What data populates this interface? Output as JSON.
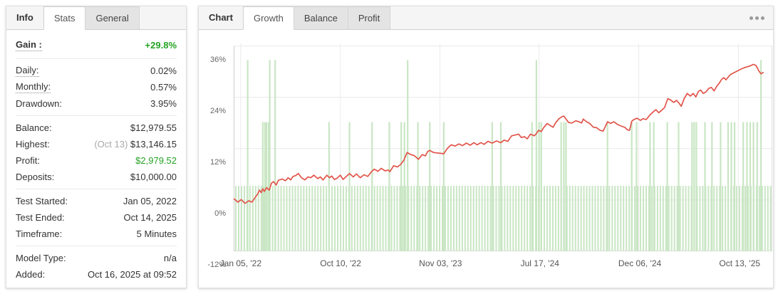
{
  "left_panel": {
    "tabs": [
      {
        "label": "Info",
        "state": "plain"
      },
      {
        "label": "Stats",
        "state": "active"
      },
      {
        "label": "General",
        "state": "inactive"
      }
    ],
    "groups": [
      {
        "rows": [
          {
            "label": "Gain :",
            "value": "+29.8%",
            "label_style": "bold dotted",
            "value_style": "gain",
            "tall": true
          }
        ]
      },
      {
        "rows": [
          {
            "label": "Daily:",
            "value": "0.02%",
            "label_style": "dotted"
          },
          {
            "label": "Monthly:",
            "value": "0.57%",
            "label_style": "dotted"
          },
          {
            "label": "Drawdown:",
            "value": "3.95%"
          }
        ]
      },
      {
        "rows": [
          {
            "label": "Balance:",
            "value": "$12,979.55"
          },
          {
            "label": "Highest:",
            "prefix": "(Oct 13) ",
            "value": "$13,146.15"
          },
          {
            "label": "Profit:",
            "value": "$2,979.52",
            "value_style": "profit"
          },
          {
            "label": "Deposits:",
            "value": "$10,000.00"
          }
        ]
      },
      {
        "rows": [
          {
            "label": "Test Started:",
            "value": "Jan 05, 2022"
          },
          {
            "label": "Test Ended:",
            "value": "Oct 14, 2025"
          },
          {
            "label": "Timeframe:",
            "value": "5 Minutes"
          }
        ]
      },
      {
        "rows": [
          {
            "label": "Model Type:",
            "value": "n/a"
          },
          {
            "label": "Added:",
            "value": "Oct 16, 2025 at 09:52"
          }
        ]
      }
    ]
  },
  "chart_panel": {
    "tabs": [
      {
        "label": "Chart",
        "state": "plain"
      },
      {
        "label": "Growth",
        "state": "active"
      },
      {
        "label": "Balance",
        "state": "inactive"
      },
      {
        "label": "Profit",
        "state": "inactive"
      }
    ],
    "menu_icon": "ellipsis-icon"
  },
  "chart_data": {
    "type": "line",
    "title": "Growth",
    "xlabel": "",
    "ylabel": "",
    "y_unit": "%",
    "ylim": [
      -12,
      36.6
    ],
    "grid": true,
    "legend": false,
    "colors": {
      "line": "#e2544a",
      "bars": "#c9e6c4",
      "grid": "#e9e9e9",
      "axis": "#bbbbbb",
      "tick_text": "#666666"
    },
    "y_ticks": [
      {
        "v": 36,
        "label": "36%"
      },
      {
        "v": 24,
        "label": "24%"
      },
      {
        "v": 12,
        "label": "12%"
      },
      {
        "v": 0,
        "label": "0%"
      },
      {
        "v": -12,
        "label": "-12%"
      }
    ],
    "x_ticks": [
      {
        "f": 0.013,
        "label": "Jan 05, '22"
      },
      {
        "f": 0.198,
        "label": "Oct 10, '22"
      },
      {
        "f": 0.383,
        "label": "Nov 03, '23"
      },
      {
        "f": 0.567,
        "label": "Jul 17, '24"
      },
      {
        "f": 0.752,
        "label": "Dec 06, '24"
      },
      {
        "f": 0.937,
        "label": "Oct 13, '25"
      }
    ],
    "series": [
      {
        "name": "Growth %",
        "type": "line",
        "color": "#e2544a",
        "points": [
          [
            0.0,
            0.3
          ],
          [
            0.008,
            -0.5
          ],
          [
            0.014,
            0.1
          ],
          [
            0.021,
            -0.8
          ],
          [
            0.028,
            -0.2
          ],
          [
            0.034,
            -0.5
          ],
          [
            0.04,
            0.6
          ],
          [
            0.044,
            1.3
          ],
          [
            0.048,
            2.3
          ],
          [
            0.051,
            1.7
          ],
          [
            0.054,
            2.6
          ],
          [
            0.057,
            2.0
          ],
          [
            0.061,
            2.9
          ],
          [
            0.066,
            2.3
          ],
          [
            0.07,
            3.9
          ],
          [
            0.074,
            4.3
          ],
          [
            0.079,
            3.5
          ],
          [
            0.083,
            4.6
          ],
          [
            0.09,
            4.9
          ],
          [
            0.096,
            4.5
          ],
          [
            0.101,
            5.2
          ],
          [
            0.106,
            4.7
          ],
          [
            0.11,
            5.5
          ],
          [
            0.115,
            5.7
          ],
          [
            0.12,
            6.2
          ],
          [
            0.126,
            5.2
          ],
          [
            0.132,
            4.7
          ],
          [
            0.138,
            5.4
          ],
          [
            0.143,
            5.2
          ],
          [
            0.149,
            5.8
          ],
          [
            0.156,
            5.0
          ],
          [
            0.161,
            5.4
          ],
          [
            0.166,
            4.7
          ],
          [
            0.173,
            5.8
          ],
          [
            0.178,
            5.2
          ],
          [
            0.182,
            5.6
          ],
          [
            0.187,
            4.8
          ],
          [
            0.192,
            5.1
          ],
          [
            0.198,
            5.8
          ],
          [
            0.203,
            4.8
          ],
          [
            0.209,
            5.5
          ],
          [
            0.215,
            6.2
          ],
          [
            0.222,
            5.4
          ],
          [
            0.228,
            6.1
          ],
          [
            0.235,
            5.2
          ],
          [
            0.242,
            5.9
          ],
          [
            0.249,
            5.5
          ],
          [
            0.256,
            6.6
          ],
          [
            0.261,
            7.2
          ],
          [
            0.268,
            6.7
          ],
          [
            0.274,
            7.4
          ],
          [
            0.281,
            6.8
          ],
          [
            0.287,
            7.0
          ],
          [
            0.29,
            6.6
          ],
          [
            0.297,
            8.0
          ],
          [
            0.304,
            7.7
          ],
          [
            0.31,
            8.3
          ],
          [
            0.316,
            9.3
          ],
          [
            0.322,
            11.1
          ],
          [
            0.329,
            10.6
          ],
          [
            0.335,
            10.4
          ],
          [
            0.343,
            9.5
          ],
          [
            0.35,
            10.6
          ],
          [
            0.356,
            10.3
          ],
          [
            0.36,
            11.3
          ],
          [
            0.364,
            11.6
          ],
          [
            0.371,
            11.1
          ],
          [
            0.377,
            11.0
          ],
          [
            0.384,
            10.9
          ],
          [
            0.39,
            10.8
          ],
          [
            0.397,
            12.1
          ],
          [
            0.404,
            12.9
          ],
          [
            0.411,
            12.6
          ],
          [
            0.418,
            13.1
          ],
          [
            0.425,
            12.7
          ],
          [
            0.432,
            13.3
          ],
          [
            0.439,
            12.8
          ],
          [
            0.446,
            13.4
          ],
          [
            0.452,
            12.9
          ],
          [
            0.459,
            13.4
          ],
          [
            0.465,
            13.0
          ],
          [
            0.472,
            13.7
          ],
          [
            0.48,
            13.3
          ],
          [
            0.488,
            13.8
          ],
          [
            0.496,
            13.4
          ],
          [
            0.502,
            14.0
          ],
          [
            0.509,
            13.7
          ],
          [
            0.516,
            15.0
          ],
          [
            0.523,
            15.2
          ],
          [
            0.529,
            15.4
          ],
          [
            0.534,
            14.6
          ],
          [
            0.54,
            14.8
          ],
          [
            0.545,
            14.3
          ],
          [
            0.551,
            15.4
          ],
          [
            0.558,
            15.0
          ],
          [
            0.562,
            15.5
          ],
          [
            0.566,
            16.3
          ],
          [
            0.571,
            16.0
          ],
          [
            0.576,
            17.0
          ],
          [
            0.582,
            17.9
          ],
          [
            0.588,
            17.4
          ],
          [
            0.593,
            17.0
          ],
          [
            0.598,
            18.1
          ],
          [
            0.604,
            19.0
          ],
          [
            0.61,
            19.5
          ],
          [
            0.613,
            19.6
          ],
          [
            0.617,
            18.9
          ],
          [
            0.622,
            18.1
          ],
          [
            0.628,
            18.0
          ],
          [
            0.635,
            18.5
          ],
          [
            0.641,
            18.3
          ],
          [
            0.646,
            18.0
          ],
          [
            0.649,
            18.9
          ],
          [
            0.655,
            18.3
          ],
          [
            0.661,
            17.9
          ],
          [
            0.668,
            17.0
          ],
          [
            0.674,
            16.9
          ],
          [
            0.68,
            16.3
          ],
          [
            0.686,
            16.1
          ],
          [
            0.694,
            18.3
          ],
          [
            0.7,
            17.9
          ],
          [
            0.706,
            18.3
          ],
          [
            0.712,
            17.7
          ],
          [
            0.719,
            17.3
          ],
          [
            0.726,
            17.0
          ],
          [
            0.731,
            16.4
          ],
          [
            0.735,
            16.3
          ],
          [
            0.739,
            18.4
          ],
          [
            0.743,
            18.8
          ],
          [
            0.749,
            19.1
          ],
          [
            0.755,
            18.6
          ],
          [
            0.76,
            19.0
          ],
          [
            0.766,
            18.8
          ],
          [
            0.773,
            19.9
          ],
          [
            0.779,
            20.6
          ],
          [
            0.784,
            21.1
          ],
          [
            0.789,
            20.4
          ],
          [
            0.794,
            20.9
          ],
          [
            0.8,
            21.6
          ],
          [
            0.806,
            23.7
          ],
          [
            0.811,
            23.4
          ],
          [
            0.817,
            22.8
          ],
          [
            0.822,
            23.3
          ],
          [
            0.827,
            22.6
          ],
          [
            0.831,
            21.9
          ],
          [
            0.836,
            23.6
          ],
          [
            0.842,
            24.9
          ],
          [
            0.848,
            24.3
          ],
          [
            0.853,
            24.9
          ],
          [
            0.858,
            24.1
          ],
          [
            0.863,
            25.4
          ],
          [
            0.867,
            25.7
          ],
          [
            0.872,
            24.9
          ],
          [
            0.877,
            25.3
          ],
          [
            0.882,
            26.1
          ],
          [
            0.887,
            26.3
          ],
          [
            0.892,
            25.5
          ],
          [
            0.897,
            26.6
          ],
          [
            0.902,
            27.4
          ],
          [
            0.906,
            28.2
          ],
          [
            0.91,
            28.6
          ],
          [
            0.914,
            28.1
          ],
          [
            0.918,
            28.7
          ],
          [
            0.922,
            29.3
          ],
          [
            0.928,
            29.7
          ],
          [
            0.934,
            30.1
          ],
          [
            0.942,
            30.6
          ],
          [
            0.95,
            31.0
          ],
          [
            0.958,
            31.3
          ],
          [
            0.965,
            31.7
          ],
          [
            0.97,
            31.4
          ],
          [
            0.975,
            30.2
          ],
          [
            0.979,
            29.5
          ],
          [
            0.983,
            29.8
          ]
        ]
      },
      {
        "name": "Activity bars",
        "type": "bar",
        "color": "#c9e6c4",
        "baseline": -12,
        "regular": {
          "count": 190,
          "start": 0.004,
          "end": 0.997,
          "height": 3.3
        },
        "special": [
          [
            0.026,
            32.7
          ],
          [
            0.054,
            18.2
          ],
          [
            0.058,
            18.2
          ],
          [
            0.061,
            18.2
          ],
          [
            0.065,
            18.2
          ],
          [
            0.067,
            32.7
          ],
          [
            0.077,
            32.7
          ],
          [
            0.177,
            18.2
          ],
          [
            0.215,
            18.2
          ],
          [
            0.257,
            18.2
          ],
          [
            0.289,
            18.2
          ],
          [
            0.311,
            18.2
          ],
          [
            0.317,
            18.2
          ],
          [
            0.323,
            32.7
          ],
          [
            0.342,
            18.2
          ],
          [
            0.364,
            18.2
          ],
          [
            0.39,
            18.2
          ],
          [
            0.48,
            18.2
          ],
          [
            0.496,
            18.2
          ],
          [
            0.554,
            18.2
          ],
          [
            0.562,
            32.7
          ],
          [
            0.567,
            18.2
          ],
          [
            0.571,
            18.2
          ],
          [
            0.608,
            18.2
          ],
          [
            0.613,
            18.2
          ],
          [
            0.617,
            18.2
          ],
          [
            0.694,
            18.2
          ],
          [
            0.739,
            18.2
          ],
          [
            0.748,
            18.2
          ],
          [
            0.773,
            18.2
          ],
          [
            0.78,
            18.2
          ],
          [
            0.805,
            18.2
          ],
          [
            0.826,
            18.2
          ],
          [
            0.851,
            18.2
          ],
          [
            0.855,
            18.2
          ],
          [
            0.859,
            18.2
          ],
          [
            0.875,
            18.2
          ],
          [
            0.888,
            18.2
          ],
          [
            0.904,
            18.2
          ],
          [
            0.918,
            18.2
          ],
          [
            0.924,
            18.2
          ],
          [
            0.93,
            18.2
          ],
          [
            0.946,
            18.2
          ],
          [
            0.953,
            18.2
          ],
          [
            0.959,
            18.2
          ],
          [
            0.965,
            18.2
          ],
          [
            0.972,
            18.2
          ],
          [
            0.979,
            32.7
          ]
        ]
      }
    ]
  }
}
